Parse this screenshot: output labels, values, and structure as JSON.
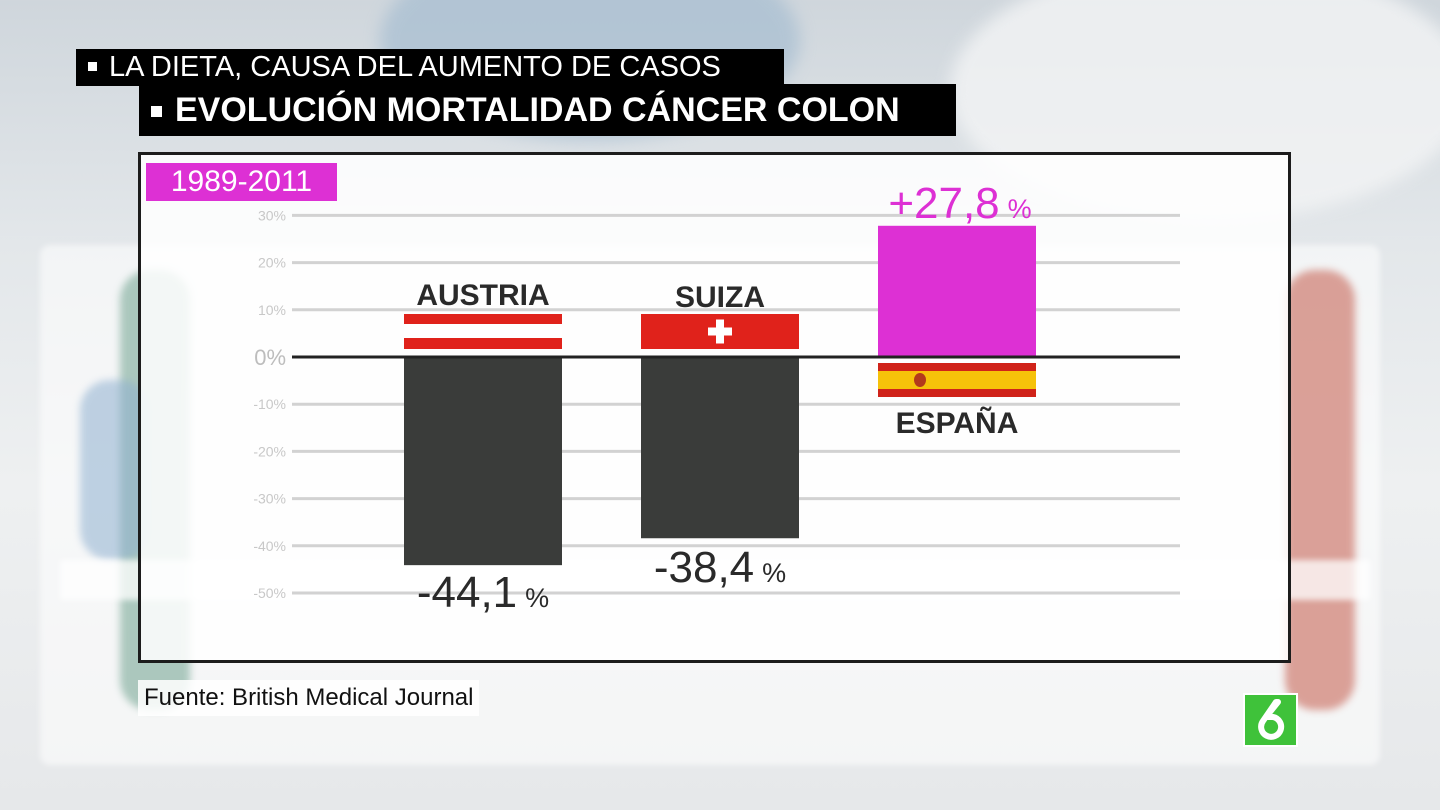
{
  "headline": {
    "line1": "LA DIETA, CAUSA DEL AUMENTO DE CASOS",
    "line2": "EVOLUCIÓN MORTALIDAD CÁNCER COLON"
  },
  "period_badge": "1989-2011",
  "source": "Fuente: British Medical Journal",
  "channel_logo": "laSexta logo",
  "colors": {
    "negative_bar": "#3a3c3a",
    "positive_bar": "#dd30d4",
    "badge": "#dd30d4",
    "logo": "#3fc23a"
  },
  "chart_data": {
    "type": "bar",
    "title": "EVOLUCIÓN MORTALIDAD CÁNCER COLON",
    "subtitle": "1989-2011",
    "xlabel": "",
    "ylabel": "",
    "ylim": [
      -50,
      30
    ],
    "yticks": [
      "30%",
      "20%",
      "10%",
      "0%",
      "-10%",
      "-20%",
      "-30%",
      "-40%",
      "-50%"
    ],
    "ytick_values": [
      30,
      20,
      10,
      0,
      -10,
      -20,
      -30,
      -40,
      -50
    ],
    "grid": true,
    "categories": [
      "AUSTRIA",
      "SUIZA",
      "ESPAÑA"
    ],
    "values": [
      -44.1,
      -38.4,
      27.8
    ],
    "value_labels": [
      "-44,1",
      "-38,4",
      "+27,8"
    ],
    "value_unit": "%",
    "flags": [
      "austria-flag-icon",
      "switzerland-flag-icon",
      "spain-flag-icon"
    ]
  }
}
